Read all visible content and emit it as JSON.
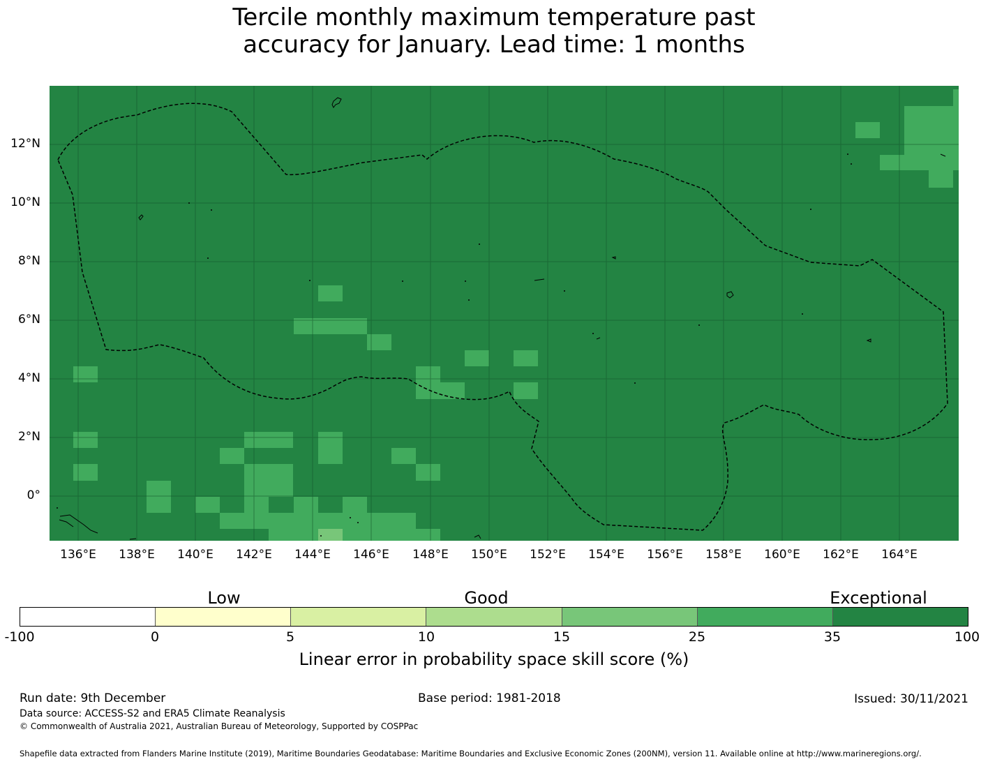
{
  "title": {
    "line1": "Tercile monthly maximum temperature past",
    "line2": "accuracy for January. Lead time: 1 months"
  },
  "map": {
    "background_color": "#238443",
    "highlight_color": "#41ab5d",
    "lighter_color": "#78c679",
    "lat_labels": [
      "12°N",
      "10°N",
      "8°N",
      "6°N",
      "4°N",
      "2°N",
      "0°"
    ],
    "lon_labels": [
      "136°E",
      "138°E",
      "140°E",
      "142°E",
      "144°E",
      "146°E",
      "148°E",
      "150°E",
      "152°E",
      "154°E",
      "156°E",
      "158°E",
      "160°E",
      "162°E",
      "164°E"
    ]
  },
  "legend": {
    "categories": [
      "Low",
      "Good",
      "Exceptional"
    ],
    "colors": [
      "#ffffff",
      "#ffffcc",
      "#d9f0a3",
      "#addd8e",
      "#78c679",
      "#41ab5d",
      "#238443"
    ],
    "ticks": [
      "-100",
      "0",
      "5",
      "10",
      "15",
      "25",
      "35",
      "100"
    ],
    "label": "Linear error in probability space skill score (%)"
  },
  "footer": {
    "run_date": "Run date: 9th December",
    "base_period": "Base period: 1981-2018",
    "issued": "Issued: 30/11/2021",
    "data_source": "Data source: ACCESS-S2 and ERA5 Climate Reanalysis",
    "copyright": "© Commonwealth of Australia 2021, Australian Bureau of Meteorology, Supported by COSPPac",
    "shapefile": "Shapefile data extracted from Flanders Marine Institute (2019), Maritime Boundaries Geodatabase: Maritime Boundaries and Exclusive Economic Zones (200NM), version 11. Available online at http://www.marineregions.org/."
  }
}
